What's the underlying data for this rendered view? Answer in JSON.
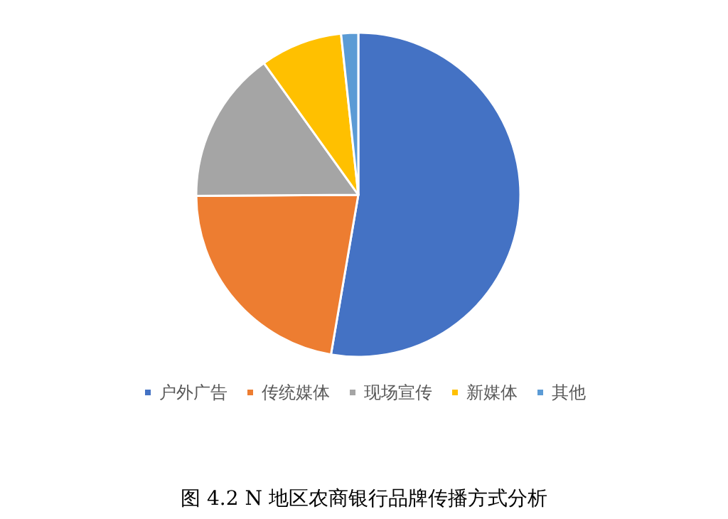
{
  "chart_data": {
    "type": "pie",
    "title": "图 4.2 N 地区农商银行品牌传播方式分析",
    "categories": [
      "户外广告",
      "传统媒体",
      "现场宣传",
      "新媒体",
      "其他"
    ],
    "values": [
      52.7,
      22.2,
      15.2,
      8.2,
      1.7
    ],
    "colors": [
      "#4472c4",
      "#ed7d31",
      "#a5a5a5",
      "#ffc000",
      "#5b9bd5"
    ],
    "legend": "bottom"
  }
}
